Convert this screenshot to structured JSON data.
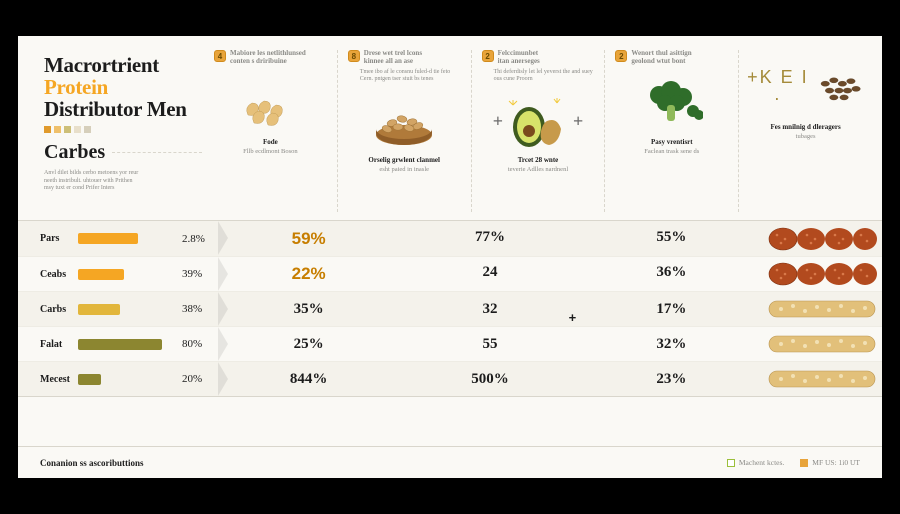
{
  "title_line1": "Macrortrient",
  "title_accent": "Protein",
  "title_line2": "Distributor Men",
  "swatch_colors": [
    "#e09a2b",
    "#efc06a",
    "#cdbf77",
    "#e8dfca",
    "#d6cfbb"
  ],
  "subtitle": "Carbes",
  "intro_blurb": "Anvl dilet bilds cerbo metoens yor reur neeth instribult. uhtouer with Prithen msy tuxt er cond Prifer Inters",
  "columns": [
    {
      "badge": "4",
      "head": "Mabiore les netlithlunsed\nconten s driribuine",
      "sub": "",
      "caption_b": "Fode",
      "caption": "Fllb ecdlmont Boson"
    },
    {
      "badge": "8",
      "head": "Drese wet trel lcons\nkinnee all an ase",
      "sub": "Tmee ibo af le consnu fuled-d tie feto Cern. pntgen tser stuit bs tenes",
      "caption_b": "Orselig grwlent clanmel",
      "caption": "esht paied in inasle"
    },
    {
      "badge": "2",
      "head": "Felccimunbet\nitan anerseges",
      "sub": "Thi deferdisly let lel yeverst the and suey ous cune Proorn",
      "caption_b": "Trcet 28 wnte",
      "caption": "teverie Adlles nardnenl"
    },
    {
      "badge": "2",
      "head": "Wenort thul asittign\ngeolond wtut bont",
      "sub": "",
      "caption_b": "Pasy vrentisrt",
      "caption": "Faclean trask sene ds"
    },
    {
      "badge": "",
      "head": "",
      "sub": "",
      "caption_b": "Fes mnilnig d dleragers",
      "caption": "tubages"
    }
  ],
  "rows": [
    {
      "label": "Pars",
      "bar_pct": 62,
      "bar_color": "#f5a623",
      "bar_val": "2.8%",
      "vals": [
        "59%",
        "77%",
        "55%"
      ],
      "food": "patties",
      "big_first": true
    },
    {
      "label": "Ceabs",
      "bar_pct": 48,
      "bar_color": "#f5a623",
      "bar_val": "39%",
      "vals": [
        "22%",
        "24",
        "36%"
      ],
      "food": "patties",
      "big_first": true
    },
    {
      "label": "Carbs",
      "bar_pct": 44,
      "bar_color": "#e2b63b",
      "bar_val": "38%",
      "vals": [
        "35%",
        "32",
        "17%"
      ],
      "food": "bar",
      "plus_before_last": true
    },
    {
      "label": "Falat",
      "bar_pct": 88,
      "bar_color": "#8c8630",
      "bar_val": "80%",
      "vals": [
        "25%",
        "55",
        "32%"
      ],
      "food": "bar"
    },
    {
      "label": "Mecest",
      "bar_pct": 24,
      "bar_color": "#8c8630",
      "bar_val": "20%",
      "vals": [
        "844%",
        "500%",
        "23%"
      ],
      "food": "bar"
    }
  ],
  "footer_left": "Conanion ss ascoributtions",
  "legend": [
    {
      "chip_border": "#9bbf3b",
      "chip_fill": "#ffffff",
      "label": "Machent kctes."
    },
    {
      "chip_border": "#e8a43a",
      "chip_fill": "#e8a43a",
      "label": "MF US: 1i0 UT"
    }
  ]
}
